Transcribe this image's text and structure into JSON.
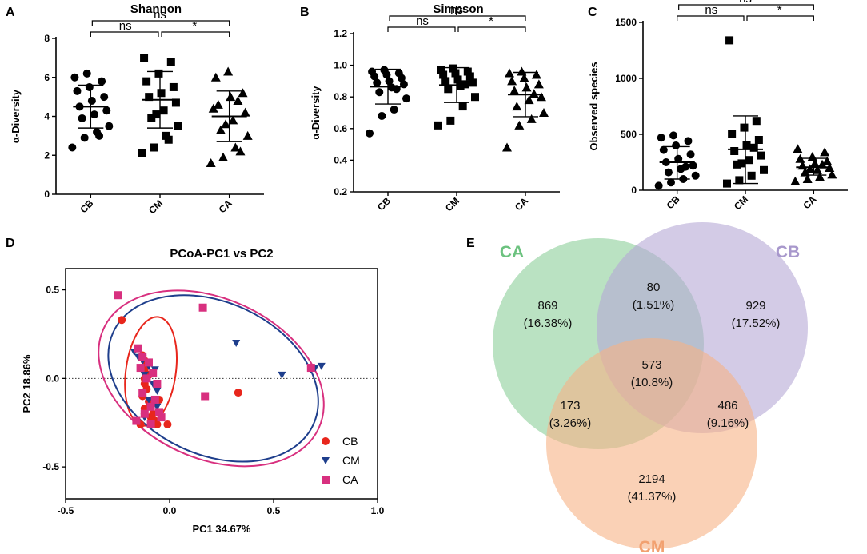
{
  "figure_labels": {
    "A": "A",
    "B": "B",
    "C": "C",
    "D": "D",
    "E": "E"
  },
  "chart_data": [
    {
      "panel": "A",
      "type": "scatter",
      "title": "Shannon",
      "xlabel": "",
      "ylabel": "α-Diversity",
      "categories": [
        "CB",
        "CM",
        "CA"
      ],
      "ylim": [
        0,
        8
      ],
      "yticks": [
        0,
        2,
        4,
        6,
        8
      ],
      "markers": [
        "circle",
        "square",
        "triangle"
      ],
      "series": [
        {
          "name": "CB",
          "values": [
            2.4,
            2.9,
            3.2,
            3.5,
            3.9,
            4.1,
            4.3,
            4.5,
            4.8,
            5.0,
            5.3,
            5.5,
            5.8,
            6.0,
            6.2,
            3.0
          ]
        },
        {
          "name": "CM",
          "values": [
            2.1,
            2.4,
            3.0,
            3.5,
            3.9,
            4.3,
            4.7,
            5.0,
            5.2,
            5.5,
            5.8,
            6.2,
            6.8,
            7.0,
            4.1,
            2.8
          ]
        },
        {
          "name": "CA",
          "values": [
            1.6,
            1.9,
            2.4,
            3.0,
            3.3,
            3.8,
            4.2,
            4.6,
            5.0,
            5.2,
            6.0,
            6.3,
            2.2,
            4.4,
            3.6,
            4.8
          ]
        }
      ],
      "stats": [
        {
          "name": "CB",
          "mean": 4.5,
          "sd_low": 3.4,
          "sd_high": 5.6
        },
        {
          "name": "CM",
          "mean": 4.85,
          "sd_low": 3.4,
          "sd_high": 6.3
        },
        {
          "name": "CA",
          "mean": 4.0,
          "sd_low": 2.7,
          "sd_high": 5.3
        }
      ],
      "comparisons": [
        {
          "pair": [
            "CB",
            "CM"
          ],
          "label": "ns"
        },
        {
          "pair": [
            "CM",
            "CA"
          ],
          "label": "*"
        },
        {
          "pair": [
            "CB",
            "CA"
          ],
          "label": "ns"
        }
      ]
    },
    {
      "panel": "B",
      "type": "scatter",
      "title": "Simpson",
      "xlabel": "",
      "ylabel": "α-Diversity",
      "categories": [
        "CB",
        "CM",
        "CA"
      ],
      "ylim": [
        0.2,
        1.2
      ],
      "yticks": [
        0.2,
        0.4,
        0.6,
        0.8,
        1.0,
        1.2
      ],
      "markers": [
        "circle",
        "square",
        "triangle"
      ],
      "series": [
        {
          "name": "CB",
          "values": [
            0.57,
            0.68,
            0.72,
            0.79,
            0.83,
            0.86,
            0.88,
            0.89,
            0.9,
            0.92,
            0.93,
            0.94,
            0.95,
            0.96,
            0.97,
            0.85
          ]
        },
        {
          "name": "CM",
          "values": [
            0.62,
            0.65,
            0.74,
            0.8,
            0.85,
            0.87,
            0.89,
            0.9,
            0.91,
            0.93,
            0.94,
            0.95,
            0.96,
            0.97,
            0.98,
            0.88
          ]
        },
        {
          "name": "CA",
          "values": [
            0.48,
            0.62,
            0.66,
            0.7,
            0.74,
            0.78,
            0.8,
            0.84,
            0.86,
            0.88,
            0.9,
            0.92,
            0.94,
            0.95,
            0.96,
            0.82
          ]
        }
      ],
      "stats": [
        {
          "name": "CB",
          "mean": 0.865,
          "sd_low": 0.755,
          "sd_high": 0.975
        },
        {
          "name": "CM",
          "mean": 0.875,
          "sd_low": 0.765,
          "sd_high": 0.985
        },
        {
          "name": "CA",
          "mean": 0.815,
          "sd_low": 0.675,
          "sd_high": 0.955
        }
      ],
      "comparisons": [
        {
          "pair": [
            "CB",
            "CM"
          ],
          "label": "ns"
        },
        {
          "pair": [
            "CM",
            "CA"
          ],
          "label": "*"
        },
        {
          "pair": [
            "CB",
            "CA"
          ],
          "label": "ns"
        }
      ]
    },
    {
      "panel": "C",
      "type": "scatter",
      "title": "",
      "xlabel": "",
      "ylabel": "Observed species",
      "categories": [
        "CB",
        "CM",
        "CA"
      ],
      "ylim": [
        0,
        1500
      ],
      "yticks": [
        0,
        500,
        1000,
        1500
      ],
      "markers": [
        "circle",
        "square",
        "triangle"
      ],
      "series": [
        {
          "name": "CB",
          "values": [
            40,
            70,
            100,
            130,
            160,
            190,
            220,
            250,
            280,
            320,
            360,
            400,
            440,
            470,
            490,
            210
          ]
        },
        {
          "name": "CM",
          "values": [
            60,
            90,
            130,
            180,
            230,
            270,
            310,
            350,
            400,
            450,
            500,
            560,
            620,
            1340,
            240,
            380
          ]
        },
        {
          "name": "CA",
          "values": [
            80,
            100,
            120,
            140,
            160,
            180,
            200,
            220,
            240,
            260,
            280,
            300,
            340,
            370,
            190,
            230
          ]
        }
      ],
      "stats": [
        {
          "name": "CB",
          "mean": 250,
          "sd_low": 100,
          "sd_high": 390
        },
        {
          "name": "CM",
          "mean": 365,
          "sd_low": 60,
          "sd_high": 665
        },
        {
          "name": "CA",
          "mean": 205,
          "sd_low": 135,
          "sd_high": 285
        }
      ],
      "comparisons": [
        {
          "pair": [
            "CB",
            "CM"
          ],
          "label": "ns"
        },
        {
          "pair": [
            "CM",
            "CA"
          ],
          "label": "*"
        },
        {
          "pair": [
            "CB",
            "CA"
          ],
          "label": "ns"
        }
      ]
    },
    {
      "panel": "D",
      "type": "scatter",
      "title": "PCoA-PC1 vs  PC2",
      "xlabel": "PC1 34.67%",
      "ylabel": "PC2 18.86%",
      "xlim": [
        -0.5,
        1.0
      ],
      "ylim": [
        -0.68,
        0.62
      ],
      "xticks": [
        -0.5,
        0.0,
        0.5,
        1.0
      ],
      "xtick_labels": [
        "-0.5",
        "0.0",
        "0.5",
        "1.0"
      ],
      "yticks": [
        -0.5,
        0.0,
        0.5
      ],
      "ytick_labels": [
        "-0.5",
        "0.0",
        "0.5"
      ],
      "reference_line": {
        "y": 0,
        "style": "dotted"
      },
      "legend": {
        "position": "right",
        "entries": [
          "CB",
          "CM",
          "CA"
        ]
      },
      "series": [
        {
          "name": "CB",
          "marker": "circle",
          "color": "#e8261c",
          "x": [
            -0.23,
            -0.13,
            -0.12,
            -0.11,
            -0.12,
            -0.1,
            -0.12,
            -0.11,
            -0.13,
            -0.1,
            -0.08,
            -0.12,
            -0.12,
            -0.08,
            -0.09,
            -0.07,
            -0.14,
            -0.06,
            -0.05,
            -0.01,
            0.33,
            -0.12
          ],
          "y": [
            0.33,
            0.13,
            0.1,
            0.07,
            0.04,
            0.02,
            -0.03,
            -0.06,
            -0.1,
            -0.13,
            -0.14,
            -0.17,
            -0.2,
            -0.2,
            -0.22,
            -0.24,
            -0.26,
            -0.26,
            -0.12,
            -0.26,
            -0.08,
            0.0
          ]
        },
        {
          "name": "CM",
          "marker": "triangle-down",
          "color": "#1e3e8c",
          "x": [
            -0.17,
            -0.15,
            -0.13,
            -0.1,
            -0.07,
            -0.12,
            -0.08,
            -0.06,
            -0.1,
            -0.06,
            -0.12,
            0.32,
            0.54,
            0.68,
            0.7,
            0.73
          ],
          "y": [
            0.15,
            0.12,
            0.1,
            0.07,
            0.05,
            0.02,
            -0.03,
            -0.07,
            -0.12,
            -0.16,
            -0.22,
            0.2,
            0.02,
            0.05,
            0.06,
            0.07
          ],
          "triangle_down": true
        },
        {
          "name": "CA",
          "marker": "square",
          "color": "#d8307f",
          "x": [
            -0.25,
            0.16,
            -0.15,
            -0.13,
            -0.1,
            -0.14,
            -0.08,
            -0.11,
            -0.06,
            -0.13,
            -0.07,
            -0.05,
            -0.16,
            -0.09,
            0.17,
            0.68,
            -0.12,
            -0.09,
            -0.04
          ],
          "y": [
            0.47,
            0.4,
            0.17,
            0.12,
            0.09,
            0.06,
            0.03,
            0.0,
            -0.03,
            -0.08,
            -0.12,
            -0.19,
            -0.24,
            -0.26,
            -0.1,
            0.06,
            -0.2,
            -0.16,
            -0.22
          ]
        }
      ],
      "ellipses": [
        {
          "name": "CB",
          "color": "#e8261c",
          "cx": -0.09,
          "cy": 0.04,
          "rx": 0.12,
          "ry": 0.31,
          "angle": 8
        },
        {
          "name": "CM",
          "color": "#1e3e8c",
          "cx": 0.21,
          "cy": 0.0,
          "rx": 0.53,
          "ry": 0.43,
          "angle": 25
        },
        {
          "name": "CA",
          "color": "#d8307f",
          "cx": 0.2,
          "cy": 0.0,
          "rx": 0.57,
          "ry": 0.45,
          "angle": 25
        }
      ]
    },
    {
      "panel": "E",
      "type": "venn",
      "sets": [
        {
          "name": "CA",
          "color": "#8ccf99",
          "label_color": "#6cc27f"
        },
        {
          "name": "CB",
          "color": "#b5a8d6",
          "label_color": "#a898cc"
        },
        {
          "name": "CM",
          "color": "#f7b386",
          "label_color": "#f2a170"
        }
      ],
      "regions": [
        {
          "sets": [
            "CA"
          ],
          "count": "869",
          "percent": "(16.38%)"
        },
        {
          "sets": [
            "CA",
            "CB"
          ],
          "count": "80",
          "percent": "(1.51%)"
        },
        {
          "sets": [
            "CB"
          ],
          "count": "929",
          "percent": "(17.52%)"
        },
        {
          "sets": [
            "CA",
            "CB",
            "CM"
          ],
          "count": "573",
          "percent": "(10.8%)"
        },
        {
          "sets": [
            "CA",
            "CM"
          ],
          "count": "173",
          "percent": "(3.26%)"
        },
        {
          "sets": [
            "CB",
            "CM"
          ],
          "count": "486",
          "percent": "(9.16%)"
        },
        {
          "sets": [
            "CM"
          ],
          "count": "2194",
          "percent": "(41.37%)"
        }
      ]
    }
  ]
}
